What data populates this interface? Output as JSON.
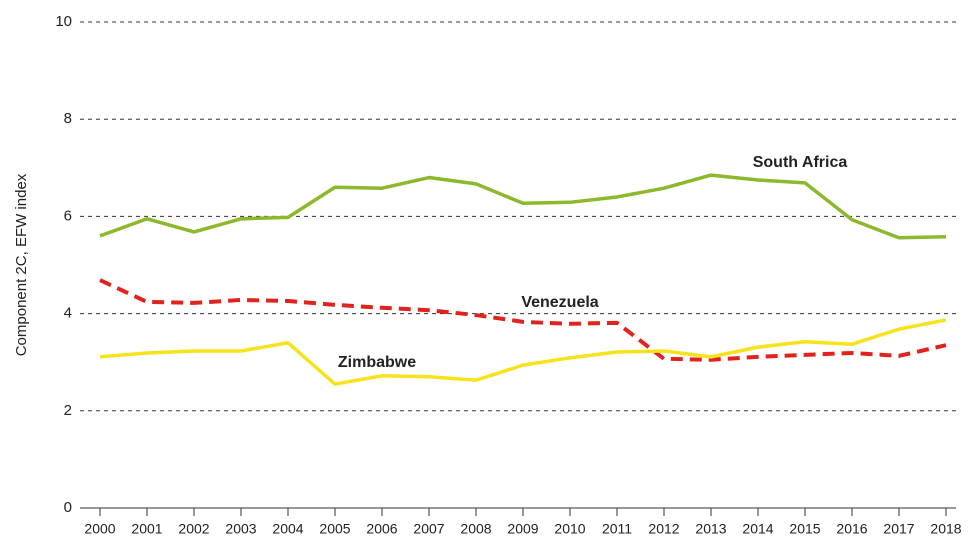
{
  "chart_data": {
    "type": "line",
    "y_label": "Component 2C, EFW index",
    "categories": [
      "2000",
      "2001",
      "2002",
      "2003",
      "2004",
      "2005",
      "2006",
      "2007",
      "2008",
      "2009",
      "2010",
      "2011",
      "2012",
      "2013",
      "2014",
      "2015",
      "2016",
      "2017",
      "2018"
    ],
    "series": [
      {
        "name": "South Africa",
        "color": "#8cb82b",
        "dashed": false,
        "values": [
          5.6,
          5.95,
          5.68,
          5.95,
          5.98,
          6.6,
          6.58,
          6.8,
          6.67,
          6.27,
          6.29,
          6.4,
          6.58,
          6.85,
          6.75,
          6.69,
          5.93,
          5.56,
          5.58
        ]
      },
      {
        "name": "Venezuela",
        "color": "#e0231c",
        "dashed": true,
        "values": [
          4.69,
          4.24,
          4.22,
          4.28,
          4.26,
          4.18,
          4.12,
          4.07,
          3.97,
          3.83,
          3.79,
          3.81,
          3.07,
          3.05,
          3.11,
          3.15,
          3.19,
          3.13,
          3.35
        ]
      },
      {
        "name": "Zimbabwe",
        "color": "#f6e31b",
        "dashed": false,
        "values": [
          3.11,
          3.19,
          3.23,
          3.23,
          3.4,
          2.55,
          2.72,
          2.7,
          2.63,
          2.94,
          3.09,
          3.21,
          3.23,
          3.11,
          3.31,
          3.42,
          3.37,
          3.68,
          3.87
        ]
      }
    ],
    "ylim": [
      0,
      10
    ],
    "yticks": [
      0,
      2,
      4,
      6,
      8,
      10
    ],
    "grid": true
  }
}
